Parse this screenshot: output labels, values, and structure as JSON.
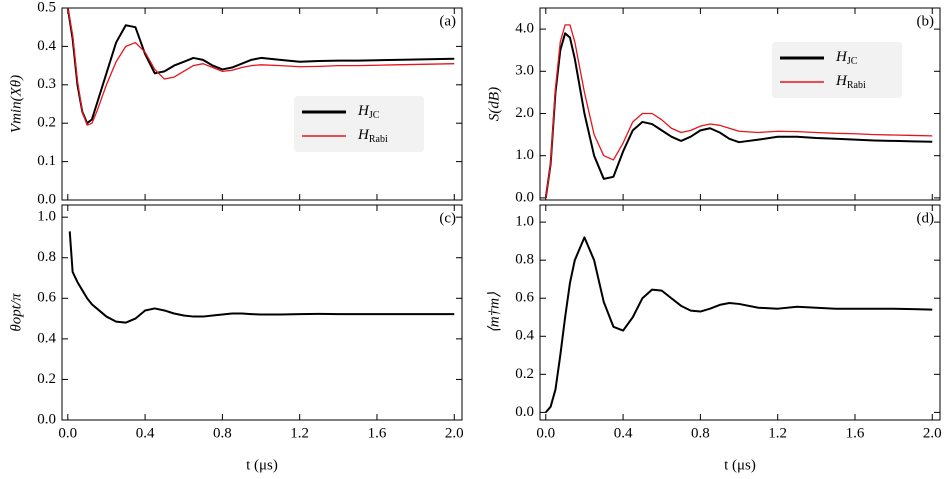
{
  "chart_data": [
    {
      "type": "line",
      "panel_label": "(a)",
      "ylabel": "Vmin(Xθ)",
      "x": [
        0,
        0.025,
        0.05,
        0.075,
        0.1,
        0.125,
        0.15,
        0.2,
        0.25,
        0.3,
        0.35,
        0.4,
        0.45,
        0.5,
        0.55,
        0.6,
        0.65,
        0.7,
        0.75,
        0.8,
        0.85,
        0.9,
        0.95,
        1.0,
        1.1,
        1.2,
        1.3,
        1.4,
        1.5,
        1.6,
        1.7,
        1.8,
        1.9,
        2.0
      ],
      "series": [
        {
          "name": "HJC",
          "color": "#000000",
          "values": [
            0.5,
            0.42,
            0.3,
            0.23,
            0.2,
            0.21,
            0.25,
            0.33,
            0.41,
            0.455,
            0.45,
            0.38,
            0.33,
            0.335,
            0.35,
            0.36,
            0.37,
            0.365,
            0.35,
            0.34,
            0.345,
            0.355,
            0.365,
            0.37,
            0.365,
            0.36,
            0.362,
            0.363,
            0.363,
            0.364,
            0.365,
            0.366,
            0.367,
            0.368
          ]
        },
        {
          "name": "HRabi",
          "color": "#e8141c",
          "values": [
            0.5,
            0.43,
            0.31,
            0.23,
            0.195,
            0.2,
            0.23,
            0.3,
            0.36,
            0.4,
            0.41,
            0.385,
            0.34,
            0.315,
            0.32,
            0.335,
            0.35,
            0.355,
            0.345,
            0.335,
            0.338,
            0.345,
            0.35,
            0.352,
            0.35,
            0.347,
            0.348,
            0.35,
            0.35,
            0.351,
            0.352,
            0.353,
            0.354,
            0.355
          ]
        }
      ],
      "xlim": [
        -0.03,
        2.04
      ],
      "ylim": [
        0,
        0.5
      ],
      "xtick_labels": false,
      "xticks": [
        {
          "value": 0,
          "label": "0.0"
        },
        0.4,
        0.8,
        1.2,
        1.6,
        {
          "value": 2,
          "label": "2.0"
        }
      ],
      "yticks": [
        {
          "value": 0,
          "label": "0.0"
        },
        0.1,
        0.2,
        0.3,
        0.4,
        0.5
      ],
      "legend": "center right"
    },
    {
      "type": "line",
      "panel_label": "(b)",
      "ylabel": "S(dB)",
      "x": [
        0,
        0.025,
        0.05,
        0.075,
        0.1,
        0.125,
        0.15,
        0.2,
        0.25,
        0.3,
        0.35,
        0.4,
        0.45,
        0.5,
        0.55,
        0.6,
        0.65,
        0.7,
        0.75,
        0.8,
        0.85,
        0.9,
        0.95,
        1.0,
        1.1,
        1.2,
        1.3,
        1.4,
        1.5,
        1.6,
        1.7,
        1.8,
        1.9,
        2.0
      ],
      "series": [
        {
          "name": "HJC",
          "color": "#000000",
          "values": [
            0,
            0.8,
            2.5,
            3.5,
            3.9,
            3.8,
            3.3,
            2.0,
            1.0,
            0.45,
            0.5,
            1.1,
            1.6,
            1.8,
            1.75,
            1.6,
            1.45,
            1.35,
            1.45,
            1.6,
            1.65,
            1.55,
            1.4,
            1.32,
            1.38,
            1.45,
            1.45,
            1.42,
            1.4,
            1.38,
            1.36,
            1.35,
            1.34,
            1.33
          ]
        },
        {
          "name": "HRabi",
          "color": "#e8141c",
          "values": [
            0,
            0.8,
            2.6,
            3.7,
            4.1,
            4.1,
            3.7,
            2.5,
            1.5,
            1.0,
            0.9,
            1.3,
            1.8,
            2.0,
            2.0,
            1.85,
            1.65,
            1.55,
            1.6,
            1.7,
            1.75,
            1.72,
            1.65,
            1.58,
            1.55,
            1.58,
            1.57,
            1.55,
            1.53,
            1.52,
            1.5,
            1.49,
            1.48,
            1.47
          ]
        }
      ],
      "xlim": [
        -0.03,
        2.04
      ],
      "ylim": [
        -0.05,
        4.5
      ],
      "xtick_labels": false,
      "xticks": [
        {
          "value": 0,
          "label": "0.0"
        },
        0.4,
        0.8,
        1.2,
        1.6,
        {
          "value": 2,
          "label": "2.0"
        }
      ],
      "yticks": [
        {
          "value": 0,
          "label": "0.0"
        },
        {
          "value": 1,
          "label": "1.0"
        },
        {
          "value": 2,
          "label": "2.0"
        },
        {
          "value": 3,
          "label": "3.0"
        },
        {
          "value": 4,
          "label": "4.0"
        }
      ],
      "legend": "upper right"
    },
    {
      "type": "line",
      "panel_label": "(c)",
      "ylabel": "θopt/π",
      "xlabel": "t (μs)",
      "x": [
        0.01,
        0.025,
        0.05,
        0.075,
        0.1,
        0.125,
        0.15,
        0.2,
        0.25,
        0.3,
        0.35,
        0.4,
        0.45,
        0.5,
        0.55,
        0.6,
        0.65,
        0.7,
        0.75,
        0.8,
        0.85,
        0.9,
        0.95,
        1.0,
        1.1,
        1.2,
        1.3,
        1.4,
        1.5,
        1.6,
        1.7,
        1.8,
        1.9,
        2.0
      ],
      "series": [
        {
          "color": "#000000",
          "values": [
            0.93,
            0.73,
            0.68,
            0.64,
            0.6,
            0.57,
            0.55,
            0.51,
            0.485,
            0.48,
            0.5,
            0.54,
            0.55,
            0.54,
            0.525,
            0.515,
            0.51,
            0.51,
            0.515,
            0.52,
            0.525,
            0.525,
            0.522,
            0.52,
            0.52,
            0.522,
            0.523,
            0.522,
            0.522,
            0.522,
            0.522,
            0.522,
            0.522,
            0.522
          ]
        }
      ],
      "xlim": [
        -0.03,
        2.04
      ],
      "ylim": [
        0,
        1.06
      ],
      "xtick_labels": true,
      "xticks": [
        {
          "value": 0,
          "label": "0.0"
        },
        0.4,
        0.8,
        1.2,
        1.6,
        {
          "value": 2,
          "label": "2.0"
        }
      ],
      "yticks": [
        {
          "value": 0,
          "label": "0.0"
        },
        0.2,
        0.4,
        0.6,
        0.8,
        {
          "value": 1,
          "label": "1.0"
        }
      ]
    },
    {
      "type": "line",
      "panel_label": "(d)",
      "ylabel": "⟨m†m⟩",
      "xlabel": "t (μs)",
      "x": [
        0,
        0.025,
        0.05,
        0.075,
        0.1,
        0.125,
        0.15,
        0.2,
        0.25,
        0.3,
        0.35,
        0.4,
        0.45,
        0.5,
        0.55,
        0.6,
        0.65,
        0.7,
        0.75,
        0.8,
        0.85,
        0.9,
        0.95,
        1.0,
        1.1,
        1.2,
        1.3,
        1.4,
        1.5,
        1.6,
        1.7,
        1.8,
        1.9,
        2.0
      ],
      "series": [
        {
          "color": "#000000",
          "values": [
            0,
            0.03,
            0.12,
            0.3,
            0.5,
            0.68,
            0.8,
            0.92,
            0.8,
            0.58,
            0.45,
            0.43,
            0.5,
            0.6,
            0.645,
            0.64,
            0.6,
            0.56,
            0.535,
            0.53,
            0.545,
            0.565,
            0.575,
            0.57,
            0.55,
            0.545,
            0.555,
            0.55,
            0.545,
            0.545,
            0.545,
            0.545,
            0.543,
            0.54
          ]
        }
      ],
      "xlim": [
        -0.03,
        2.04
      ],
      "ylim": [
        -0.04,
        1.09
      ],
      "xtick_labels": true,
      "xticks": [
        {
          "value": 0,
          "label": "0.0"
        },
        0.4,
        0.8,
        1.2,
        1.6,
        {
          "value": 2,
          "label": "2.0"
        }
      ],
      "yticks": [
        {
          "value": 0,
          "label": "0.0"
        },
        0.2,
        0.4,
        0.6,
        0.8,
        {
          "value": 1,
          "label": "1.0"
        }
      ]
    }
  ]
}
